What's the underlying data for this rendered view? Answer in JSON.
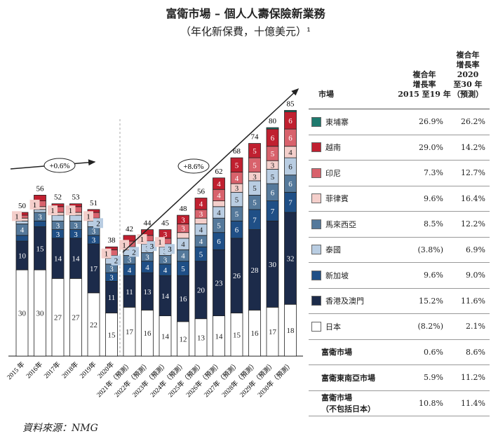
{
  "title": "富衛市場 – 個人人壽保險新業務",
  "subtitle": "（年化新保費，十億美元）¹",
  "source": "資料來源：NMG",
  "chart_data": {
    "type": "bar",
    "stacked": true,
    "categories": [
      "2015 年",
      "2016年",
      "2017年",
      "2018年",
      "2019年",
      "2020年",
      "2021年（預測）",
      "2022年（預測）",
      "2023年（預測）",
      "2024年（預測）",
      "2025年（預測）",
      "2026年（預測）",
      "2027年（預測）",
      "2028年（預測）",
      "2029年（預測）",
      "2030年（預測）"
    ],
    "totals": [
      50,
      56,
      52,
      53,
      51,
      38,
      42,
      44,
      45,
      48,
      56,
      62,
      68,
      74,
      80,
      85
    ],
    "series": [
      {
        "name": "日本",
        "color": "#ffffff",
        "text": "#222",
        "values": [
          30,
          30,
          27,
          27,
          22,
          15,
          17,
          16,
          14,
          12,
          13,
          14,
          15,
          16,
          17,
          18
        ]
      },
      {
        "name": "香港及澳門",
        "color": "#1c2b4a",
        "text": "#fff",
        "values": [
          10,
          15,
          14,
          14,
          17,
          11,
          11,
          13,
          14,
          16,
          20,
          23,
          26,
          28,
          30,
          32
        ]
      },
      {
        "name": "新加坡",
        "color": "#1f4f86",
        "text": "#fff",
        "values": [
          2,
          2,
          3,
          3,
          3,
          3,
          4,
          4,
          4,
          5,
          5,
          6,
          6,
          7,
          7,
          7
        ]
      },
      {
        "name": "馬來西亞",
        "color": "#55799b",
        "text": "#fff",
        "values": [
          4,
          3,
          3,
          3,
          3,
          3,
          3,
          3,
          3,
          4,
          4,
          5,
          5,
          5,
          6,
          6
        ]
      },
      {
        "name": "泰國",
        "color": "#b9cde2",
        "text": "#222",
        "values": [
          1,
          1,
          2,
          2,
          2,
          2,
          2,
          3,
          3,
          4,
          4,
          4,
          5,
          5,
          5,
          6
        ]
      },
      {
        "name": "菲律賓",
        "color": "#f4cfcb",
        "text": "#222",
        "values": [
          1,
          1,
          1,
          1,
          1,
          1,
          1,
          1,
          1,
          2,
          2,
          2,
          3,
          3,
          3,
          4
        ]
      },
      {
        "name": "印尼",
        "color": "#d8626c",
        "text": "#fff",
        "values": [
          1,
          2,
          2,
          2,
          2,
          2,
          2,
          2,
          2,
          3,
          3,
          4,
          4,
          5,
          5,
          6
        ]
      },
      {
        "name": "越南",
        "color": "#c02030",
        "text": "#fff",
        "values": [
          1,
          2,
          1,
          1,
          1,
          1,
          2,
          2,
          3,
          3,
          4,
          4,
          5,
          5,
          6,
          6
        ]
      },
      {
        "name": "東埔寨",
        "color": "#1e7a6e",
        "text": "#fff",
        "values": [
          0,
          0,
          0,
          0,
          0,
          0,
          0,
          0,
          0,
          0,
          0,
          0,
          0,
          0,
          0.5,
          0.5
        ]
      }
    ],
    "annotations": [
      {
        "text": "+0.6%",
        "period": "2015-2019"
      },
      {
        "text": "+8.6%",
        "period": "2020-2030"
      }
    ],
    "forecast_from": "2021"
  },
  "table": {
    "headers": {
      "market": "市場",
      "cagr1": [
        "複合年",
        "增長率",
        "2015 至19 年"
      ],
      "cagr2": [
        "複合年",
        "增長率",
        "2020",
        "至30 年",
        "（預測）"
      ]
    },
    "rows": [
      {
        "name": "東埔寨",
        "color": "#1e7a6e",
        "c1": "26.9%",
        "c2": "26.2%"
      },
      {
        "name": "越南",
        "color": "#c02030",
        "c1": "29.0%",
        "c2": "14.2%"
      },
      {
        "name": "印尼",
        "color": "#d8626c",
        "c1": "7.3%",
        "c2": "12.7%"
      },
      {
        "name": "菲律賓",
        "color": "#f4cfcb",
        "c1": "9.6%",
        "c2": "16.4%"
      },
      {
        "name": "馬來西亞",
        "color": "#55799b",
        "c1": "8.5%",
        "c2": "12.2%"
      },
      {
        "name": "泰國",
        "color": "#b9cde2",
        "c1": "(3.8%)",
        "c2": "6.9%"
      },
      {
        "name": "新加坡",
        "color": "#1f4f86",
        "c1": "9.6%",
        "c2": "9.0%"
      },
      {
        "name": "香港及澳門",
        "color": "#1c2b4a",
        "c1": "15.2%",
        "c2": "11.6%"
      },
      {
        "name": "日本",
        "color": "#ffffff",
        "c1": "(8.2%)",
        "c2": "2.1%"
      }
    ],
    "totals": [
      {
        "name": "富衛市場",
        "c1": "0.6%",
        "c2": "8.6%"
      },
      {
        "name": "富衛東南亞市場",
        "c1": "5.9%",
        "c2": "11.2%"
      },
      {
        "name": "富衛市場\n（不包括日本）",
        "c1": "10.8%",
        "c2": "11.4%"
      }
    ]
  }
}
